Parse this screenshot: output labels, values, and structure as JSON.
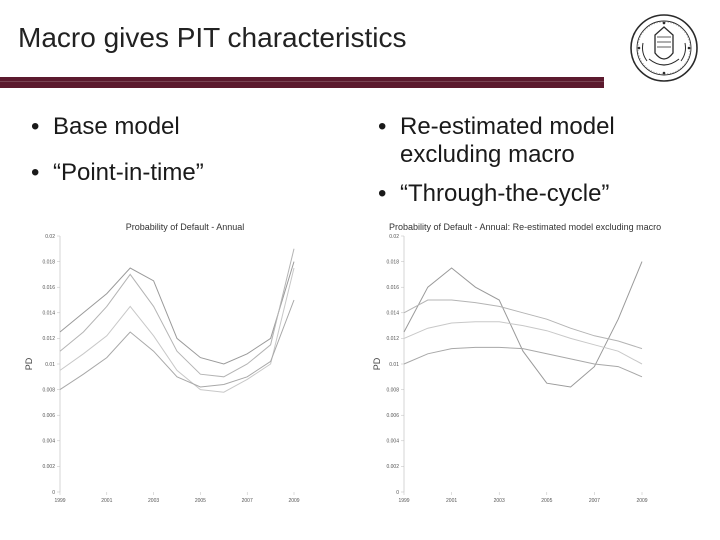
{
  "slide": {
    "title": "Macro gives PIT characteristics"
  },
  "left_column": {
    "bullets": [
      "Base model",
      "“Point-in-time”"
    ]
  },
  "right_column": {
    "bullets": [
      "Re-estimated model excluding macro",
      "“Through-the-cycle”"
    ]
  },
  "bullet_glyph": "•",
  "colors": {
    "accent_rule": "#5c1a2e",
    "series_lines": [
      "#9a9a9a",
      "#b4b4b4",
      "#c8c8c8",
      "#a8a8a8"
    ]
  },
  "icons": {
    "seal": "university-seal-icon"
  },
  "chart_data": [
    {
      "type": "line",
      "title": "Probability of Default - Annual",
      "ylabel": "PD",
      "xlabel": "",
      "x": [
        1999,
        2001,
        2003,
        2005,
        2007,
        2009
      ],
      "x_ticks": [
        "1999",
        "2001",
        "2003",
        "2005",
        "2007",
        "2009"
      ],
      "y_ticks": [
        "0",
        "0.002",
        "0.004",
        "0.006",
        "0.008",
        "0.01",
        "0.012",
        "0.014",
        "0.016",
        "0.018",
        "0.02"
      ],
      "ylim": [
        0,
        0.02
      ],
      "grid": false,
      "series": [
        {
          "x": [
            1999,
            2000,
            2001,
            2002,
            2003,
            2004,
            2005,
            2006,
            2007,
            2008,
            2009
          ],
          "values": [
            0.0125,
            0.014,
            0.0155,
            0.0175,
            0.0165,
            0.012,
            0.0105,
            0.01,
            0.0108,
            0.012,
            0.018
          ]
        },
        {
          "x": [
            1999,
            2000,
            2001,
            2002,
            2003,
            2004,
            2005,
            2006,
            2007,
            2008,
            2009
          ],
          "values": [
            0.011,
            0.0125,
            0.0145,
            0.017,
            0.0145,
            0.011,
            0.0092,
            0.009,
            0.01,
            0.0115,
            0.019
          ]
        },
        {
          "x": [
            1999,
            2000,
            2001,
            2002,
            2003,
            2004,
            2005,
            2006,
            2007,
            2008,
            2009
          ],
          "values": [
            0.0095,
            0.0108,
            0.0122,
            0.0145,
            0.0122,
            0.0095,
            0.008,
            0.0078,
            0.0088,
            0.01,
            0.0175
          ]
        },
        {
          "x": [
            1999,
            2000,
            2001,
            2002,
            2003,
            2004,
            2005,
            2006,
            2007,
            2008,
            2009
          ],
          "values": [
            0.008,
            0.0092,
            0.0105,
            0.0125,
            0.011,
            0.009,
            0.0082,
            0.0084,
            0.009,
            0.0102,
            0.015
          ]
        }
      ]
    },
    {
      "type": "line",
      "title": "Probability of Default - Annual: Re-estimated model excluding macro",
      "ylabel": "PD",
      "xlabel": "",
      "x": [
        1999,
        2001,
        2003,
        2005,
        2007,
        2009
      ],
      "x_ticks": [
        "1999",
        "2001",
        "2003",
        "2005",
        "2007",
        "2009"
      ],
      "y_ticks": [
        "0",
        "0.002",
        "0.004",
        "0.006",
        "0.008",
        "0.01",
        "0.012",
        "0.014",
        "0.016",
        "0.018",
        "0.02"
      ],
      "ylim": [
        0,
        0.02
      ],
      "grid": false,
      "series": [
        {
          "x": [
            1999,
            2000,
            2001,
            2002,
            2003,
            2004,
            2005,
            2006,
            2007,
            2008,
            2009
          ],
          "values": [
            0.0125,
            0.016,
            0.0175,
            0.016,
            0.015,
            0.011,
            0.0085,
            0.0082,
            0.0098,
            0.0135,
            0.018
          ]
        },
        {
          "x": [
            1999,
            2000,
            2001,
            2002,
            2003,
            2004,
            2005,
            2006,
            2007,
            2008,
            2009
          ],
          "values": [
            0.014,
            0.015,
            0.015,
            0.0148,
            0.0145,
            0.014,
            0.0135,
            0.0128,
            0.0122,
            0.0118,
            0.0112
          ]
        },
        {
          "x": [
            1999,
            2000,
            2001,
            2002,
            2003,
            2004,
            2005,
            2006,
            2007,
            2008,
            2009
          ],
          "values": [
            0.012,
            0.0128,
            0.0132,
            0.0133,
            0.0133,
            0.013,
            0.0126,
            0.012,
            0.0115,
            0.011,
            0.01
          ]
        },
        {
          "x": [
            1999,
            2000,
            2001,
            2002,
            2003,
            2004,
            2005,
            2006,
            2007,
            2008,
            2009
          ],
          "values": [
            0.01,
            0.0108,
            0.0112,
            0.0113,
            0.0113,
            0.0112,
            0.0108,
            0.0104,
            0.01,
            0.0098,
            0.009
          ]
        }
      ]
    }
  ]
}
